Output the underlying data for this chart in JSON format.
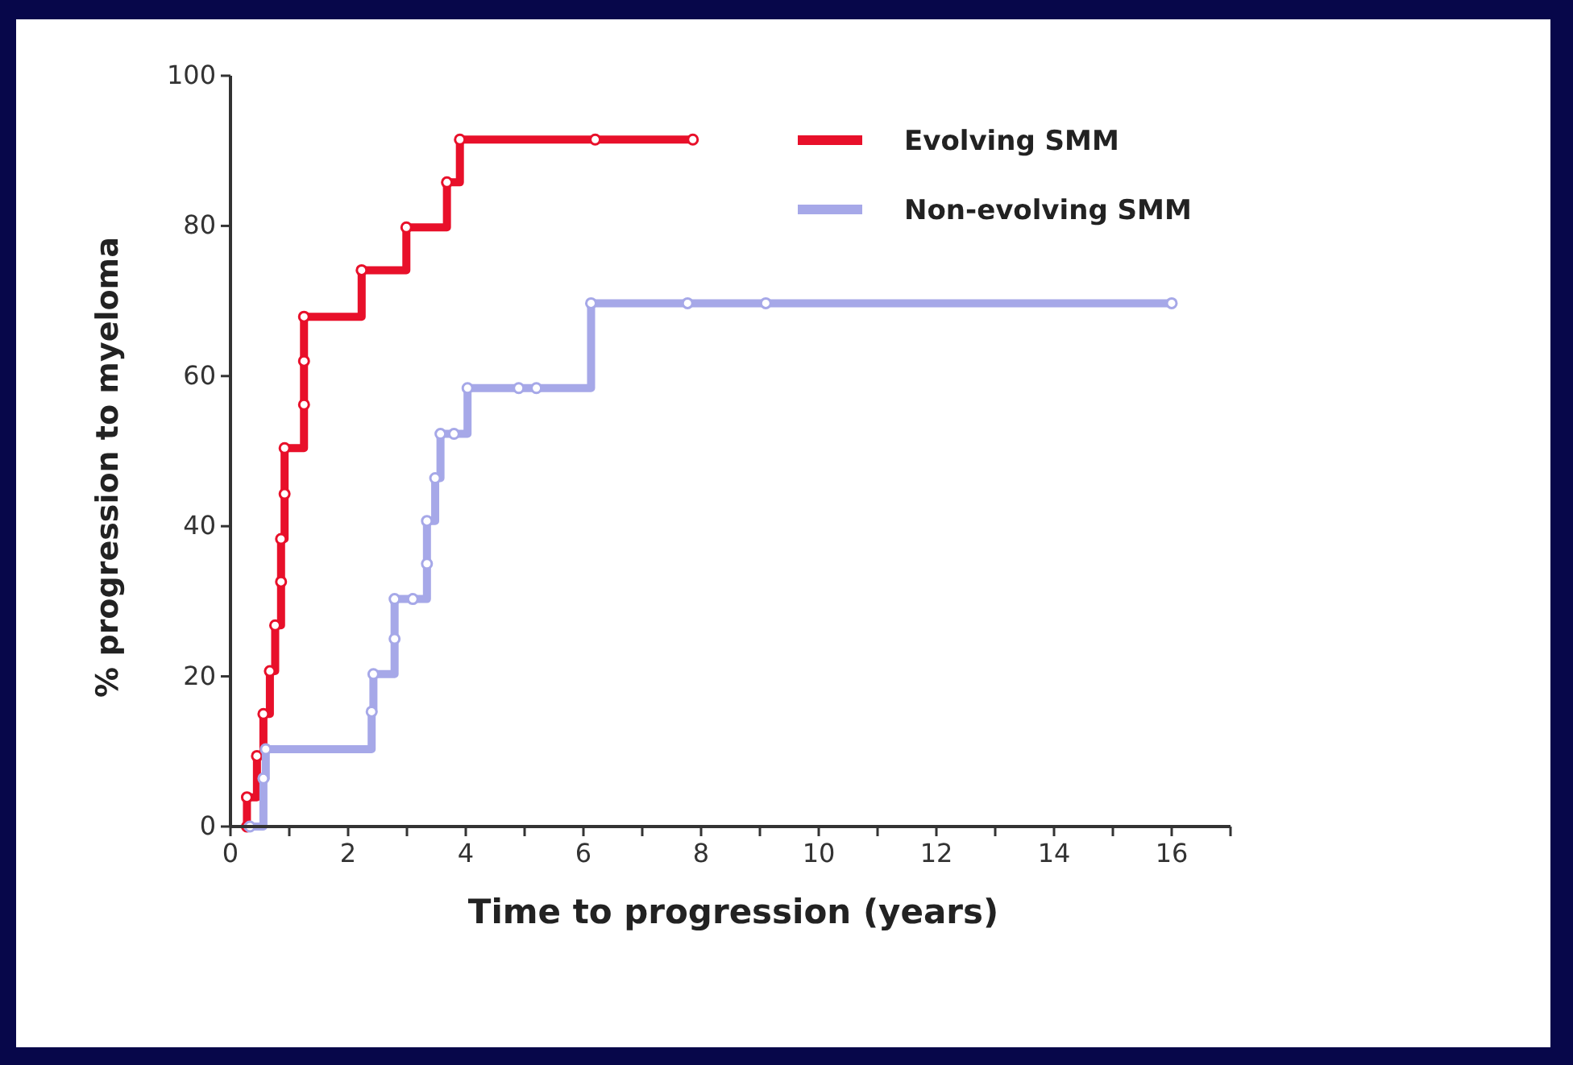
{
  "chart_data": {
    "type": "step",
    "xlabel": "Time to progression (years)",
    "ylabel": "% progression to myeloma",
    "xlim": [
      0,
      17
    ],
    "ylim": [
      0,
      100
    ],
    "xticks": [
      0,
      {
        "value": 1,
        "label": null
      },
      2,
      {
        "value": 3,
        "label": null
      },
      4,
      {
        "value": 5,
        "label": null
      },
      6,
      {
        "value": 7,
        "label": null
      },
      8,
      {
        "value": 9,
        "label": null
      },
      10,
      {
        "value": 11,
        "label": null
      },
      12,
      {
        "value": 13,
        "label": null
      },
      14,
      {
        "value": 15,
        "label": null
      },
      16,
      {
        "value": 17,
        "label": null
      }
    ],
    "yticks": [
      0,
      20,
      40,
      60,
      80,
      100
    ],
    "legend": "top right",
    "marker": "circle",
    "line_style": "solid",
    "grid": false,
    "series": [
      {
        "name": "Evolving SMM",
        "color": "#e8102a",
        "x": [
          0.28,
          0.28,
          0.45,
          0.56,
          0.67,
          0.76,
          0.86,
          0.86,
          0.92,
          0.92,
          1.25,
          1.25,
          1.25,
          2.23,
          2.99,
          3.68,
          3.9,
          6.2,
          7.86
        ],
        "values": [
          0,
          3.9,
          9.4,
          15,
          20.7,
          26.8,
          32.6,
          38.3,
          44.3,
          50.4,
          56.2,
          62,
          67.9,
          74.1,
          79.8,
          85.8,
          91.5,
          91.5,
          91.5
        ]
      },
      {
        "name": "Non-evolving SMM",
        "color": "#a6a8e8",
        "x": [
          0.33,
          0.56,
          0.6,
          2.4,
          2.43,
          2.79,
          2.79,
          3.1,
          3.34,
          3.34,
          3.48,
          3.57,
          3.8,
          4.03,
          4.9,
          5.2,
          6.13,
          7.77,
          9.1,
          16.0
        ],
        "values": [
          0,
          6.4,
          10.3,
          15.3,
          20.3,
          25,
          30.3,
          30.3,
          35,
          40.7,
          46.4,
          52.3,
          52.3,
          58.4,
          58.4,
          58.4,
          69.7,
          69.7,
          69.7,
          69.7
        ]
      }
    ]
  }
}
